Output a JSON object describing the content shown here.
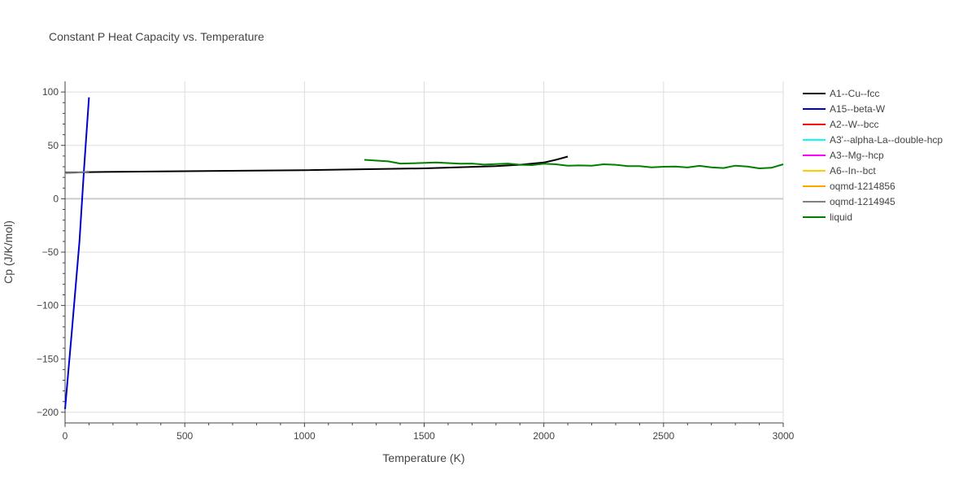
{
  "chart_data": {
    "type": "line",
    "title": "Constant P Heat Capacity vs. Temperature",
    "xlabel": "Temperature (K)",
    "ylabel": "Cp (J/K/mol)",
    "xlim": [
      0,
      3000
    ],
    "ylim": [
      -210,
      110
    ],
    "xticks": [
      0,
      500,
      1000,
      1500,
      2000,
      2500,
      3000
    ],
    "xtick_labels": [
      "0",
      "500",
      "1000",
      "1500",
      "2000",
      "2500",
      "3000"
    ],
    "yticks": [
      -200,
      -150,
      -100,
      -50,
      0,
      50,
      100
    ],
    "ytick_labels": [
      "−200",
      "−150",
      "−100",
      "−50",
      "0",
      "50",
      "100"
    ],
    "grid": true,
    "legend_position": "right",
    "series": [
      {
        "name": "A1--Cu--fcc",
        "color": "#000000",
        "x": [
          0,
          100,
          500,
          1000,
          1500,
          1800,
          1900,
          2000,
          2050,
          2100
        ],
        "y": [
          24.5,
          25,
          25.8,
          26.8,
          28.5,
          30.5,
          31.8,
          34,
          36.5,
          39.5
        ]
      },
      {
        "name": "A15--beta-W",
        "color": "#0000cc",
        "x": [
          0,
          30,
          60,
          80,
          100
        ],
        "y": [
          -197,
          -120,
          -40,
          30,
          95
        ]
      },
      {
        "name": "A2--W--bcc",
        "color": "#ff0000",
        "x": [],
        "y": []
      },
      {
        "name": "A3'--alpha-La--double-hcp",
        "color": "#00ffff",
        "x": [],
        "y": []
      },
      {
        "name": "A3--Mg--hcp",
        "color": "#ff00ff",
        "x": [],
        "y": []
      },
      {
        "name": "A6--In--bct",
        "color": "#ffcc00",
        "x": [],
        "y": []
      },
      {
        "name": "oqmd-1214856",
        "color": "#ffa500",
        "x": [],
        "y": []
      },
      {
        "name": "oqmd-1214945",
        "color": "#808080",
        "x": [
          0,
          50,
          100
        ],
        "y": [
          24,
          24.5,
          25.5
        ]
      },
      {
        "name": "liquid",
        "color": "#008000",
        "x": [
          1250,
          1350,
          1400,
          1450,
          1550,
          1650,
          1700,
          1750,
          1850,
          1900,
          1950,
          2000,
          2050,
          2100,
          2150,
          2200,
          2250,
          2300,
          2350,
          2400,
          2450,
          2500,
          2550,
          2600,
          2650,
          2700,
          2750,
          2800,
          2850,
          2900,
          2950,
          3000
        ],
        "y": [
          36.5,
          35,
          33,
          33.2,
          34,
          32.8,
          33,
          32,
          33,
          31.8,
          31.5,
          32.8,
          32.3,
          31,
          31.2,
          31,
          32.3,
          31.8,
          30.5,
          30.5,
          29.5,
          30,
          30.2,
          29.3,
          30.8,
          29.5,
          28.8,
          31,
          30.2,
          28.5,
          29,
          32.3
        ]
      }
    ]
  }
}
